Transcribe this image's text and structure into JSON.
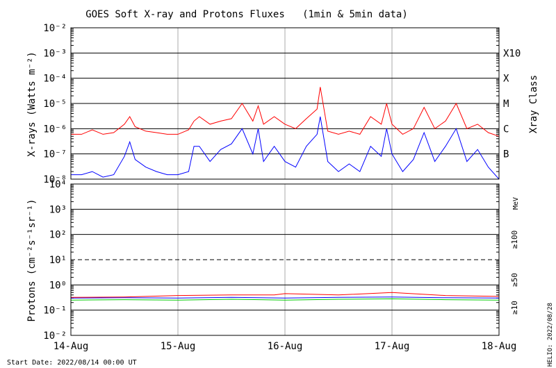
{
  "chart_data": [
    {
      "type": "line",
      "title": "GOES Soft X-ray and Protons Fluxes   (1min & 5min data)",
      "ylabel": "X-rays (Watts m⁻²)",
      "yscale": "log",
      "ylim": [
        1e-08,
        0.01
      ],
      "ytick_labels": [
        "10⁻⁸",
        "10⁻⁷",
        "10⁻⁶",
        "10⁻⁵",
        "10⁻⁴",
        "10⁻³",
        "10⁻²"
      ],
      "right_axis_label": "Xray Class",
      "class_labels": [
        "B",
        "C",
        "M",
        "X",
        "X10"
      ],
      "grid": true,
      "series": [
        {
          "color": "#ff0000",
          "x": [
            0,
            0.1,
            0.2,
            0.3,
            0.4,
            0.5,
            0.55,
            0.6,
            0.7,
            0.8,
            0.9,
            1.0,
            1.1,
            1.15,
            1.2,
            1.3,
            1.4,
            1.5,
            1.6,
            1.7,
            1.75,
            1.8,
            1.9,
            2.0,
            2.1,
            2.2,
            2.3,
            2.33,
            2.4,
            2.5,
            2.6,
            2.7,
            2.8,
            2.9,
            2.95,
            3.0,
            3.1,
            3.2,
            3.3,
            3.4,
            3.5,
            3.6,
            3.7,
            3.8,
            3.9,
            4.0
          ],
          "y": [
            6e-07,
            6e-07,
            9e-07,
            6e-07,
            7e-07,
            1.5e-06,
            3e-06,
            1.2e-06,
            8e-07,
            7e-07,
            6e-07,
            6e-07,
            9e-07,
            2e-06,
            3e-06,
            1.5e-06,
            2e-06,
            2.5e-06,
            1e-05,
            2e-06,
            8e-06,
            1.5e-06,
            3e-06,
            1.5e-06,
            1e-06,
            2.5e-06,
            6e-06,
            4.5e-05,
            8e-07,
            6e-07,
            8e-07,
            6e-07,
            3e-06,
            1.5e-06,
            1e-05,
            1.5e-06,
            6e-07,
            1e-06,
            7e-06,
            1e-06,
            2e-06,
            1e-05,
            1e-06,
            1.5e-06,
            7e-07,
            5e-07
          ]
        },
        {
          "color": "#0000ff",
          "x": [
            0,
            0.1,
            0.2,
            0.3,
            0.4,
            0.5,
            0.55,
            0.6,
            0.7,
            0.8,
            0.9,
            1.0,
            1.1,
            1.15,
            1.2,
            1.3,
            1.4,
            1.5,
            1.6,
            1.7,
            1.75,
            1.8,
            1.9,
            2.0,
            2.1,
            2.2,
            2.3,
            2.33,
            2.4,
            2.5,
            2.6,
            2.7,
            2.8,
            2.9,
            2.95,
            3.0,
            3.1,
            3.2,
            3.3,
            3.4,
            3.5,
            3.6,
            3.7,
            3.8,
            3.9,
            4.0
          ],
          "y": [
            1.5e-08,
            1.5e-08,
            2e-08,
            1.2e-08,
            1.5e-08,
            8e-08,
            3e-07,
            6e-08,
            3e-08,
            2e-08,
            1.5e-08,
            1.5e-08,
            2e-08,
            2e-07,
            2e-07,
            5e-08,
            1.5e-07,
            2.5e-07,
            1e-06,
            1e-07,
            1e-06,
            5e-08,
            2e-07,
            5e-08,
            3e-08,
            2e-07,
            6e-07,
            3e-06,
            5e-08,
            2e-08,
            4e-08,
            2e-08,
            2e-07,
            8e-08,
            1e-06,
            1e-07,
            2e-08,
            6e-08,
            7e-07,
            5e-08,
            2e-07,
            1e-06,
            5e-08,
            1.5e-07,
            3e-08,
            1e-08
          ]
        }
      ]
    },
    {
      "type": "line",
      "ylabel": "Protons (cm⁻²s⁻¹sr⁻¹)",
      "yscale": "log",
      "ylim": [
        0.01,
        10000
      ],
      "ytick_labels": [
        "10⁻²",
        "10⁻¹",
        "10⁰",
        "10¹",
        "10²",
        "10³",
        "10⁴"
      ],
      "x_tick_labels": [
        "14-Aug",
        "15-Aug",
        "16-Aug",
        "17-Aug",
        "18-Aug"
      ],
      "threshold": 10,
      "grid": true,
      "energy_unit": "MeV",
      "legend": [
        {
          "label": "≥10",
          "color": "#ff0000"
        },
        {
          "label": "≥50",
          "color": "#0000ff"
        },
        {
          "label": "≥100",
          "color": "#00cc00"
        }
      ],
      "series": [
        {
          "color": "#00cc00",
          "x": [
            0,
            0.5,
            1.0,
            1.5,
            2.0,
            2.5,
            3.0,
            3.5,
            4.0
          ],
          "y": [
            0.25,
            0.26,
            0.25,
            0.27,
            0.25,
            0.27,
            0.28,
            0.26,
            0.25
          ]
        },
        {
          "color": "#0000ff",
          "x": [
            0,
            0.5,
            1.0,
            1.5,
            2.0,
            2.5,
            3.0,
            3.5,
            4.0
          ],
          "y": [
            0.3,
            0.31,
            0.3,
            0.32,
            0.3,
            0.32,
            0.33,
            0.31,
            0.3
          ]
        },
        {
          "color": "#ff0000",
          "x": [
            0,
            0.5,
            1.0,
            1.5,
            1.9,
            2.0,
            2.5,
            3.0,
            3.5,
            4.0
          ],
          "y": [
            0.32,
            0.33,
            0.38,
            0.4,
            0.4,
            0.45,
            0.4,
            0.5,
            0.38,
            0.35
          ]
        }
      ]
    }
  ],
  "footer": {
    "start_date": "Start Date: 2022/08/14 00:00 UT",
    "credit": "HELIO: 2022/08/28"
  }
}
